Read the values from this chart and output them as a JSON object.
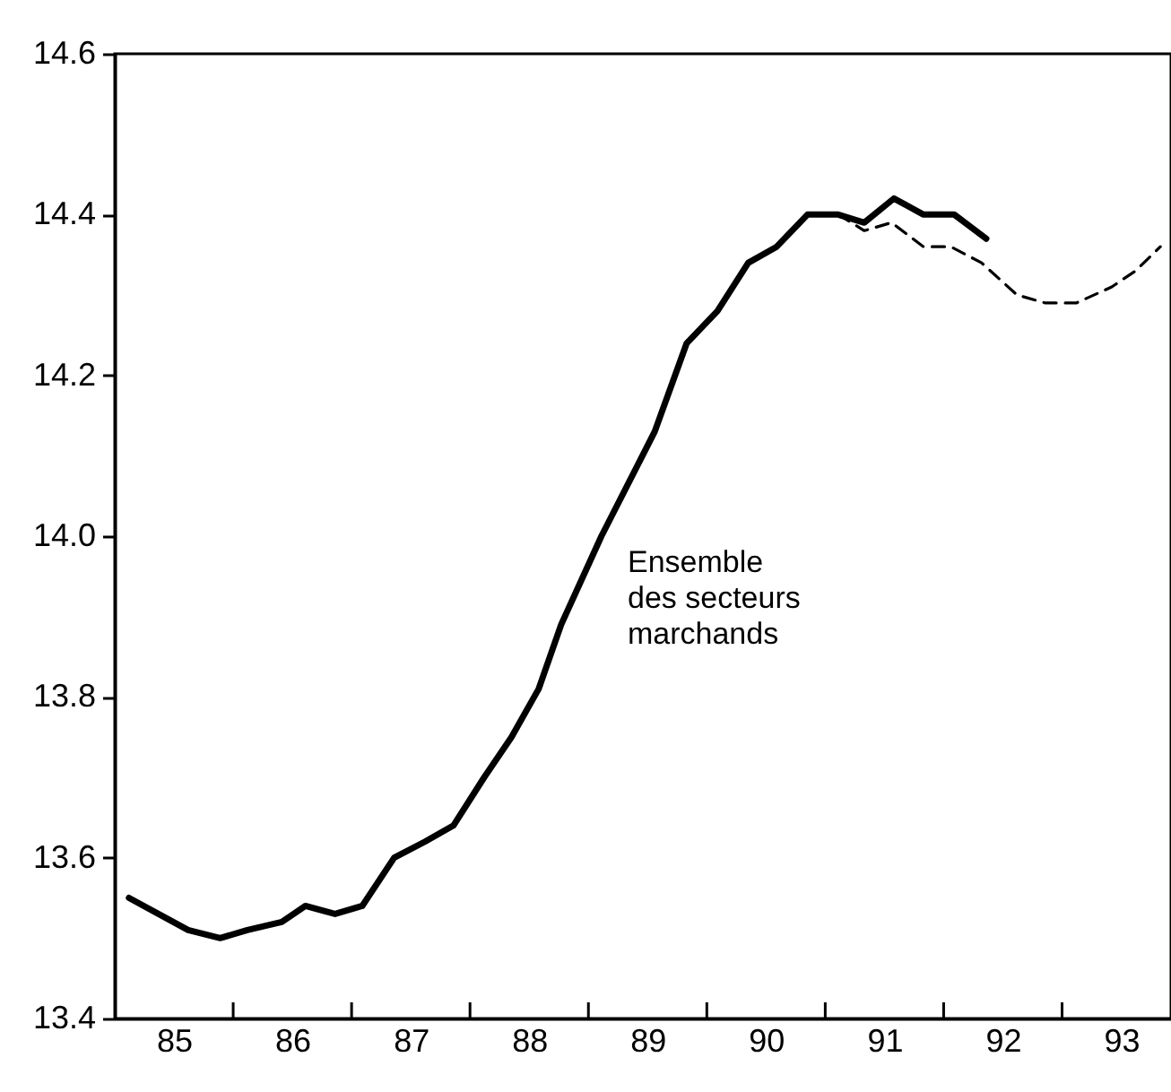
{
  "chart_data": {
    "type": "line",
    "xlim": [
      85,
      93.92
    ],
    "xticks": [
      {
        "value": 85.5,
        "label": "85"
      },
      {
        "value": 86,
        "label": null
      },
      {
        "value": 86.5,
        "label": "86"
      },
      {
        "value": 87,
        "label": null
      },
      {
        "value": 87.5,
        "label": "87"
      },
      {
        "value": 88,
        "label": null
      },
      {
        "value": 88.5,
        "label": "88"
      },
      {
        "value": 89,
        "label": null
      },
      {
        "value": 89.5,
        "label": "89"
      },
      {
        "value": 90,
        "label": null
      },
      {
        "value": 90.5,
        "label": "90"
      },
      {
        "value": 91,
        "label": null
      },
      {
        "value": 91.5,
        "label": "91"
      },
      {
        "value": 92,
        "label": null
      },
      {
        "value": 92.5,
        "label": "92"
      },
      {
        "value": 93,
        "label": null
      },
      {
        "value": 93.5,
        "label": "93"
      }
    ],
    "ylim": [
      13.4,
      14.6
    ],
    "yticks": [
      13.4,
      13.6,
      13.8,
      {
        "value": 14,
        "label": "14.0"
      },
      14.2,
      14.4,
      14.6
    ],
    "grid": false,
    "marker": "none",
    "series": [
      {
        "name": "Ensemble des secteurs marchands",
        "color": "#000000",
        "line_style": "solid",
        "x": [
          85.12,
          85.62,
          85.89,
          86.12,
          86.41,
          86.61,
          86.86,
          87.09,
          87.36,
          87.62,
          87.86,
          88.12,
          88.35,
          88.58,
          88.77,
          89.11,
          89.56,
          89.83,
          90.09,
          90.35,
          90.59,
          90.85,
          91.11,
          91.33,
          91.58,
          91.83,
          92.09,
          92.36
        ],
        "values": [
          13.55,
          13.51,
          13.5,
          13.51,
          13.52,
          13.54,
          13.53,
          13.54,
          13.6,
          13.62,
          13.64,
          13.7,
          13.75,
          13.81,
          13.89,
          14.0,
          14.13,
          14.24,
          14.28,
          14.34,
          14.36,
          14.4,
          14.4,
          14.39,
          14.42,
          14.4,
          14.4,
          14.37
        ]
      },
      {
        "color": "#000000",
        "line_style": "dashed",
        "x": [
          91.11,
          91.33,
          91.56,
          91.83,
          92.06,
          92.32,
          92.62,
          92.86,
          93.12,
          93.42,
          93.62,
          93.83
        ],
        "values": [
          14.4,
          14.38,
          14.39,
          14.36,
          14.36,
          14.34,
          14.3,
          14.29,
          14.29,
          14.31,
          14.33,
          14.36
        ]
      }
    ]
  }
}
